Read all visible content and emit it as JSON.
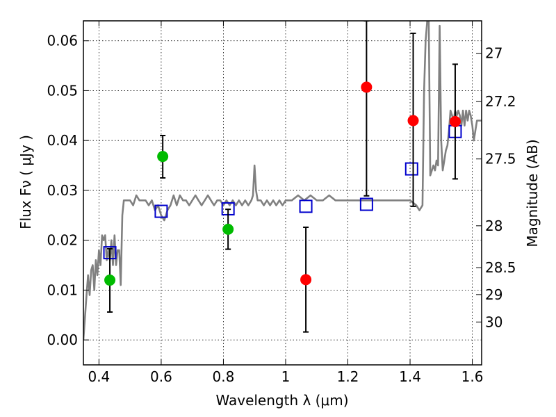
{
  "chart_data": {
    "type": "scatter",
    "title": "",
    "xlabel": "Wavelength  λ (μm)",
    "ylabel": "Flux  Fν  ( μJy )",
    "y2label": "Magnitude (AB)",
    "xlim": [
      0.35,
      1.63
    ],
    "ylim": [
      -0.005,
      0.064
    ],
    "x_ticks": [
      0.4,
      0.6,
      0.8,
      1.0,
      1.2,
      1.4,
      1.6
    ],
    "x_tick_labels": [
      "0.4",
      "0.6",
      "0.8",
      "1",
      "1.2",
      "1.4",
      "1.6"
    ],
    "y_ticks": [
      0.0,
      0.01,
      0.02,
      0.03,
      0.04,
      0.05,
      0.06
    ],
    "y_tick_labels": [
      "0.00",
      "0.01",
      "0.02",
      "0.03",
      "0.04",
      "0.05",
      "0.06"
    ],
    "y2_ticks": [
      {
        "label": "27",
        "flux": 0.0575
      },
      {
        "label": "27.2",
        "flux": 0.0478
      },
      {
        "label": "27.5",
        "flux": 0.0363
      },
      {
        "label": "28",
        "flux": 0.0229
      },
      {
        "label": "28.5",
        "flux": 0.0145
      },
      {
        "label": "29",
        "flux": 0.0091
      },
      {
        "label": "30",
        "flux": 0.0036
      }
    ],
    "grid": true,
    "grid_style": "dotted",
    "colors": {
      "model": "#808080",
      "green_points": "#00bb00",
      "red_points": "#ff0000",
      "squares": "#0000cc",
      "errorbars": "#000000"
    },
    "series": [
      {
        "style": "line",
        "x": [
          0.35,
          0.36,
          0.365,
          0.37,
          0.375,
          0.38,
          0.385,
          0.39,
          0.395,
          0.4,
          0.405,
          0.41,
          0.415,
          0.42,
          0.425,
          0.43,
          0.435,
          0.44,
          0.445,
          0.45,
          0.455,
          0.46,
          0.465,
          0.47,
          0.475,
          0.48,
          0.49,
          0.5,
          0.51,
          0.52,
          0.53,
          0.54,
          0.55,
          0.56,
          0.57,
          0.58,
          0.59,
          0.6,
          0.61,
          0.62,
          0.63,
          0.64,
          0.65,
          0.66,
          0.67,
          0.68,
          0.69,
          0.7,
          0.71,
          0.72,
          0.73,
          0.74,
          0.75,
          0.76,
          0.77,
          0.78,
          0.79,
          0.8,
          0.81,
          0.82,
          0.83,
          0.84,
          0.85,
          0.86,
          0.87,
          0.88,
          0.89,
          0.895,
          0.9,
          0.905,
          0.91,
          0.92,
          0.93,
          0.94,
          0.95,
          0.96,
          0.97,
          0.98,
          0.99,
          1.0,
          1.02,
          1.04,
          1.06,
          1.08,
          1.1,
          1.12,
          1.14,
          1.16,
          1.18,
          1.2,
          1.22,
          1.24,
          1.26,
          1.28,
          1.3,
          1.32,
          1.34,
          1.36,
          1.38,
          1.4,
          1.41,
          1.42,
          1.43,
          1.44,
          1.445,
          1.45,
          1.455,
          1.46,
          1.465,
          1.47,
          1.475,
          1.48,
          1.485,
          1.49,
          1.495,
          1.5,
          1.505,
          1.51,
          1.515,
          1.52,
          1.525,
          1.53,
          1.535,
          1.54,
          1.545,
          1.55,
          1.555,
          1.56,
          1.565,
          1.57,
          1.575,
          1.58,
          1.585,
          1.59,
          1.595,
          1.6,
          1.605,
          1.61,
          1.615,
          1.62,
          1.625,
          1.63
        ],
        "y": [
          0.0,
          0.009,
          0.013,
          0.009,
          0.014,
          0.015,
          0.01,
          0.016,
          0.013,
          0.018,
          0.015,
          0.021,
          0.02,
          0.021,
          0.016,
          0.018,
          0.016,
          0.02,
          0.015,
          0.021,
          0.015,
          0.018,
          0.018,
          0.011,
          0.025,
          0.028,
          0.028,
          0.028,
          0.027,
          0.029,
          0.028,
          0.028,
          0.028,
          0.027,
          0.028,
          0.026,
          0.027,
          0.025,
          0.024,
          0.026,
          0.027,
          0.029,
          0.027,
          0.029,
          0.028,
          0.028,
          0.027,
          0.028,
          0.029,
          0.028,
          0.027,
          0.028,
          0.029,
          0.028,
          0.027,
          0.028,
          0.028,
          0.027,
          0.028,
          0.027,
          0.028,
          0.027,
          0.028,
          0.027,
          0.028,
          0.027,
          0.028,
          0.029,
          0.035,
          0.03,
          0.028,
          0.028,
          0.027,
          0.028,
          0.027,
          0.028,
          0.027,
          0.028,
          0.027,
          0.028,
          0.028,
          0.029,
          0.028,
          0.029,
          0.028,
          0.028,
          0.029,
          0.028,
          0.028,
          0.028,
          0.028,
          0.028,
          0.028,
          0.028,
          0.028,
          0.028,
          0.028,
          0.028,
          0.028,
          0.028,
          0.0275,
          0.027,
          0.026,
          0.027,
          0.05,
          0.06,
          0.064,
          0.064,
          0.033,
          0.034,
          0.035,
          0.034,
          0.036,
          0.035,
          0.063,
          0.04,
          0.034,
          0.036,
          0.038,
          0.039,
          0.042,
          0.046,
          0.045,
          0.044,
          0.046,
          0.045,
          0.046,
          0.045,
          0.043,
          0.046,
          0.043,
          0.046,
          0.044,
          0.046,
          0.045,
          0.043,
          0.04,
          0.042,
          0.044,
          0.044,
          0.044,
          0.044
        ]
      },
      {
        "style": "open-square",
        "x": [
          0.435,
          0.6,
          0.815,
          1.065,
          1.26,
          1.405,
          1.545
        ],
        "y": [
          0.0175,
          0.0258,
          0.0263,
          0.0268,
          0.0272,
          0.0343,
          0.0418
        ]
      },
      {
        "style": "filled-circle-green",
        "x": [
          0.435,
          0.605,
          0.815
        ],
        "y": [
          0.012,
          0.0368,
          0.0222
        ],
        "err_low": [
          0.0064,
          0.0043,
          0.004
        ],
        "err_high": [
          0.0063,
          0.0042,
          0.004
        ]
      },
      {
        "style": "filled-circle-red",
        "x": [
          1.065,
          1.26,
          1.41,
          1.545
        ],
        "y": [
          0.0121,
          0.0507,
          0.044,
          0.0438
        ],
        "err_low": [
          0.0105,
          0.0218,
          0.0172,
          0.0115
        ],
        "err_high": [
          0.0105,
          0.0133,
          0.0175,
          0.0115
        ]
      }
    ]
  }
}
